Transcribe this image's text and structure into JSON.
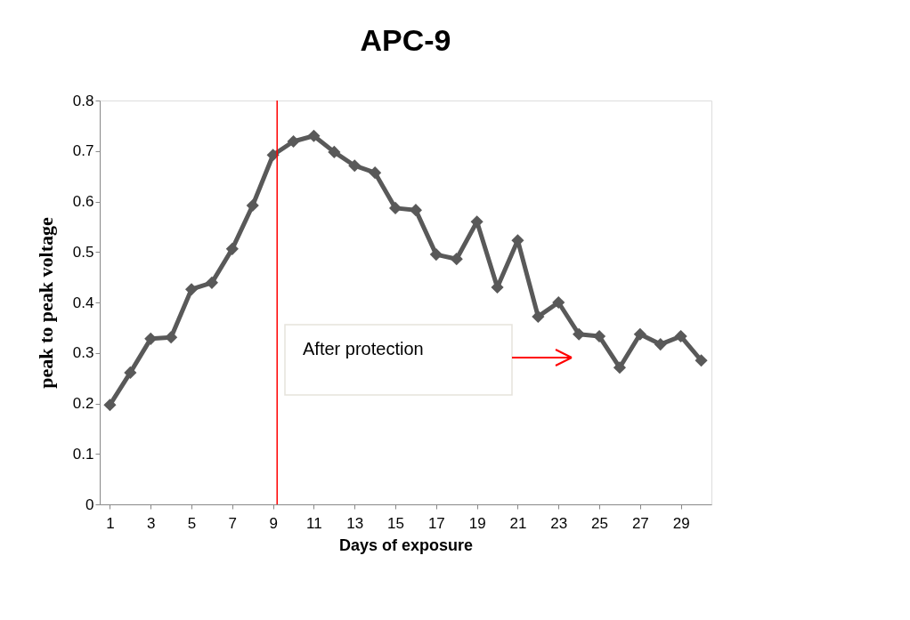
{
  "chart_data": {
    "type": "line",
    "title": "APC-9",
    "xlabel": "Days of exposure",
    "ylabel": "peak to peak voltage",
    "x": [
      1,
      2,
      3,
      4,
      5,
      6,
      7,
      8,
      9,
      10,
      11,
      12,
      13,
      14,
      15,
      16,
      17,
      18,
      19,
      20,
      21,
      22,
      23,
      24,
      25,
      26,
      27,
      28,
      29,
      30
    ],
    "series": [
      {
        "color": "#595959",
        "values": [
          0.197,
          0.261,
          0.328,
          0.331,
          0.426,
          0.439,
          0.506,
          0.592,
          0.692,
          0.719,
          0.73,
          0.698,
          0.671,
          0.657,
          0.587,
          0.583,
          0.495,
          0.486,
          0.56,
          0.43,
          0.523,
          0.372,
          0.4,
          0.337,
          0.333,
          0.271,
          0.337,
          0.317,
          0.333,
          0.285
        ]
      }
    ],
    "xlim": [
      0.5,
      30.5
    ],
    "xticks": [
      1,
      3,
      5,
      7,
      9,
      11,
      13,
      15,
      17,
      19,
      21,
      23,
      25,
      27,
      29
    ],
    "ylim": [
      0,
      0.8
    ],
    "yticks": [
      0,
      0.1,
      0.2,
      0.3,
      0.4,
      0.5,
      0.6,
      0.7,
      0.8
    ],
    "ref_lines": [
      {
        "axis": "x",
        "value": 9.2,
        "color": "#ff0000"
      }
    ],
    "annotations": [
      "After protection"
    ],
    "marker": "diamond",
    "line_style": "solid",
    "grid": false
  }
}
